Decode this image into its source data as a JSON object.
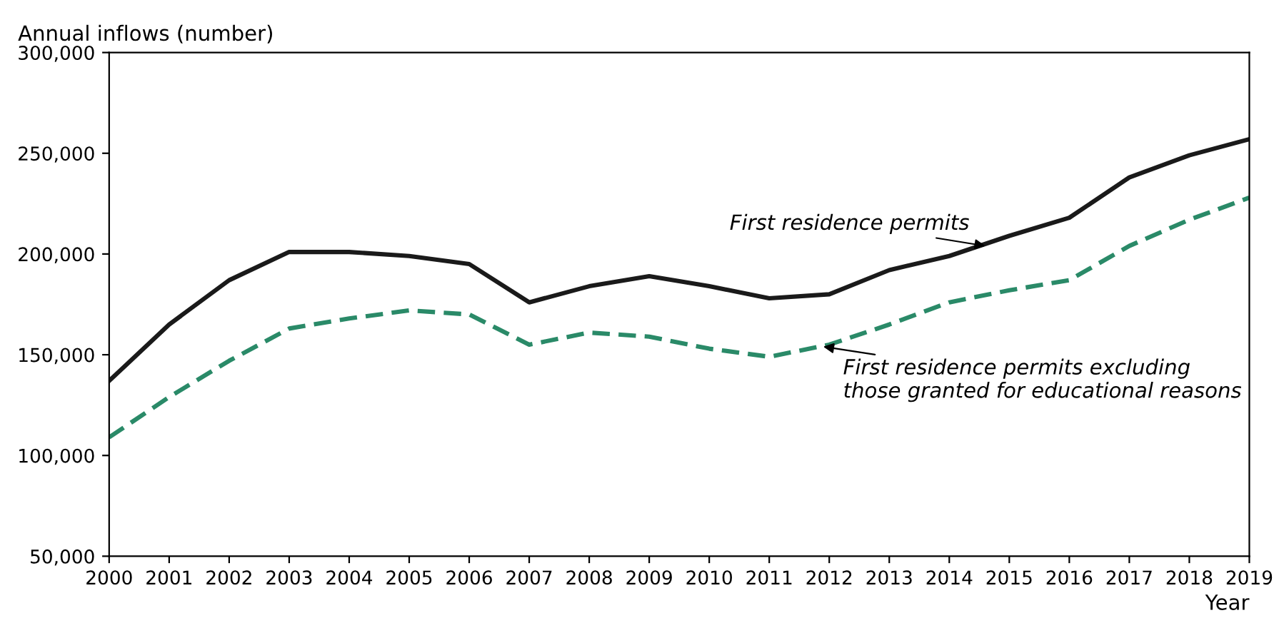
{
  "chart_data": {
    "type": "line",
    "ylabel": "Annual inflows (number)",
    "xlabel": "Year",
    "x": [
      2000,
      2001,
      2002,
      2003,
      2004,
      2005,
      2006,
      2007,
      2008,
      2009,
      2010,
      2011,
      2012,
      2013,
      2014,
      2015,
      2016,
      2017,
      2018,
      2019
    ],
    "series": [
      {
        "color": "#1a1a1a",
        "line_style": "solid",
        "values": [
          137000,
          165000,
          187000,
          201000,
          201000,
          199000,
          195000,
          176000,
          184000,
          189000,
          184000,
          178000,
          180000,
          192000,
          199000,
          209000,
          218000,
          238000,
          249000,
          257000
        ]
      },
      {
        "color": "#2a8a68",
        "line_style": "dashed",
        "values": [
          109000,
          129000,
          147000,
          163000,
          168000,
          172000,
          170000,
          155000,
          161000,
          159000,
          153000,
          149000,
          155000,
          165000,
          176000,
          182000,
          187000,
          204000,
          217000,
          228000
        ]
      }
    ],
    "xlim": [
      2000,
      2019
    ],
    "xticks": [
      2000,
      2001,
      2002,
      2003,
      2004,
      2005,
      2006,
      2007,
      2008,
      2009,
      2010,
      2011,
      2012,
      2013,
      2014,
      2015,
      2016,
      2017,
      2018,
      2019
    ],
    "ylim": [
      50000,
      300000
    ],
    "yticks": [
      {
        "value": 50000,
        "label": "50,000"
      },
      {
        "value": 100000,
        "label": "100,000"
      },
      {
        "value": 150000,
        "label": "150,000"
      },
      {
        "value": 200000,
        "label": "200,000"
      },
      {
        "value": 250000,
        "label": "250,000"
      },
      {
        "value": 300000,
        "label": "300,000"
      }
    ],
    "annotations": [
      {
        "text": "First residence permits",
        "x": 2014.6,
        "y": 204000
      },
      {
        "text": "First residence permits excluding\nthose granted for educational reasons",
        "x": 2011.9,
        "y": 154000
      }
    ],
    "grid": false,
    "legend": false,
    "marker": "none"
  }
}
